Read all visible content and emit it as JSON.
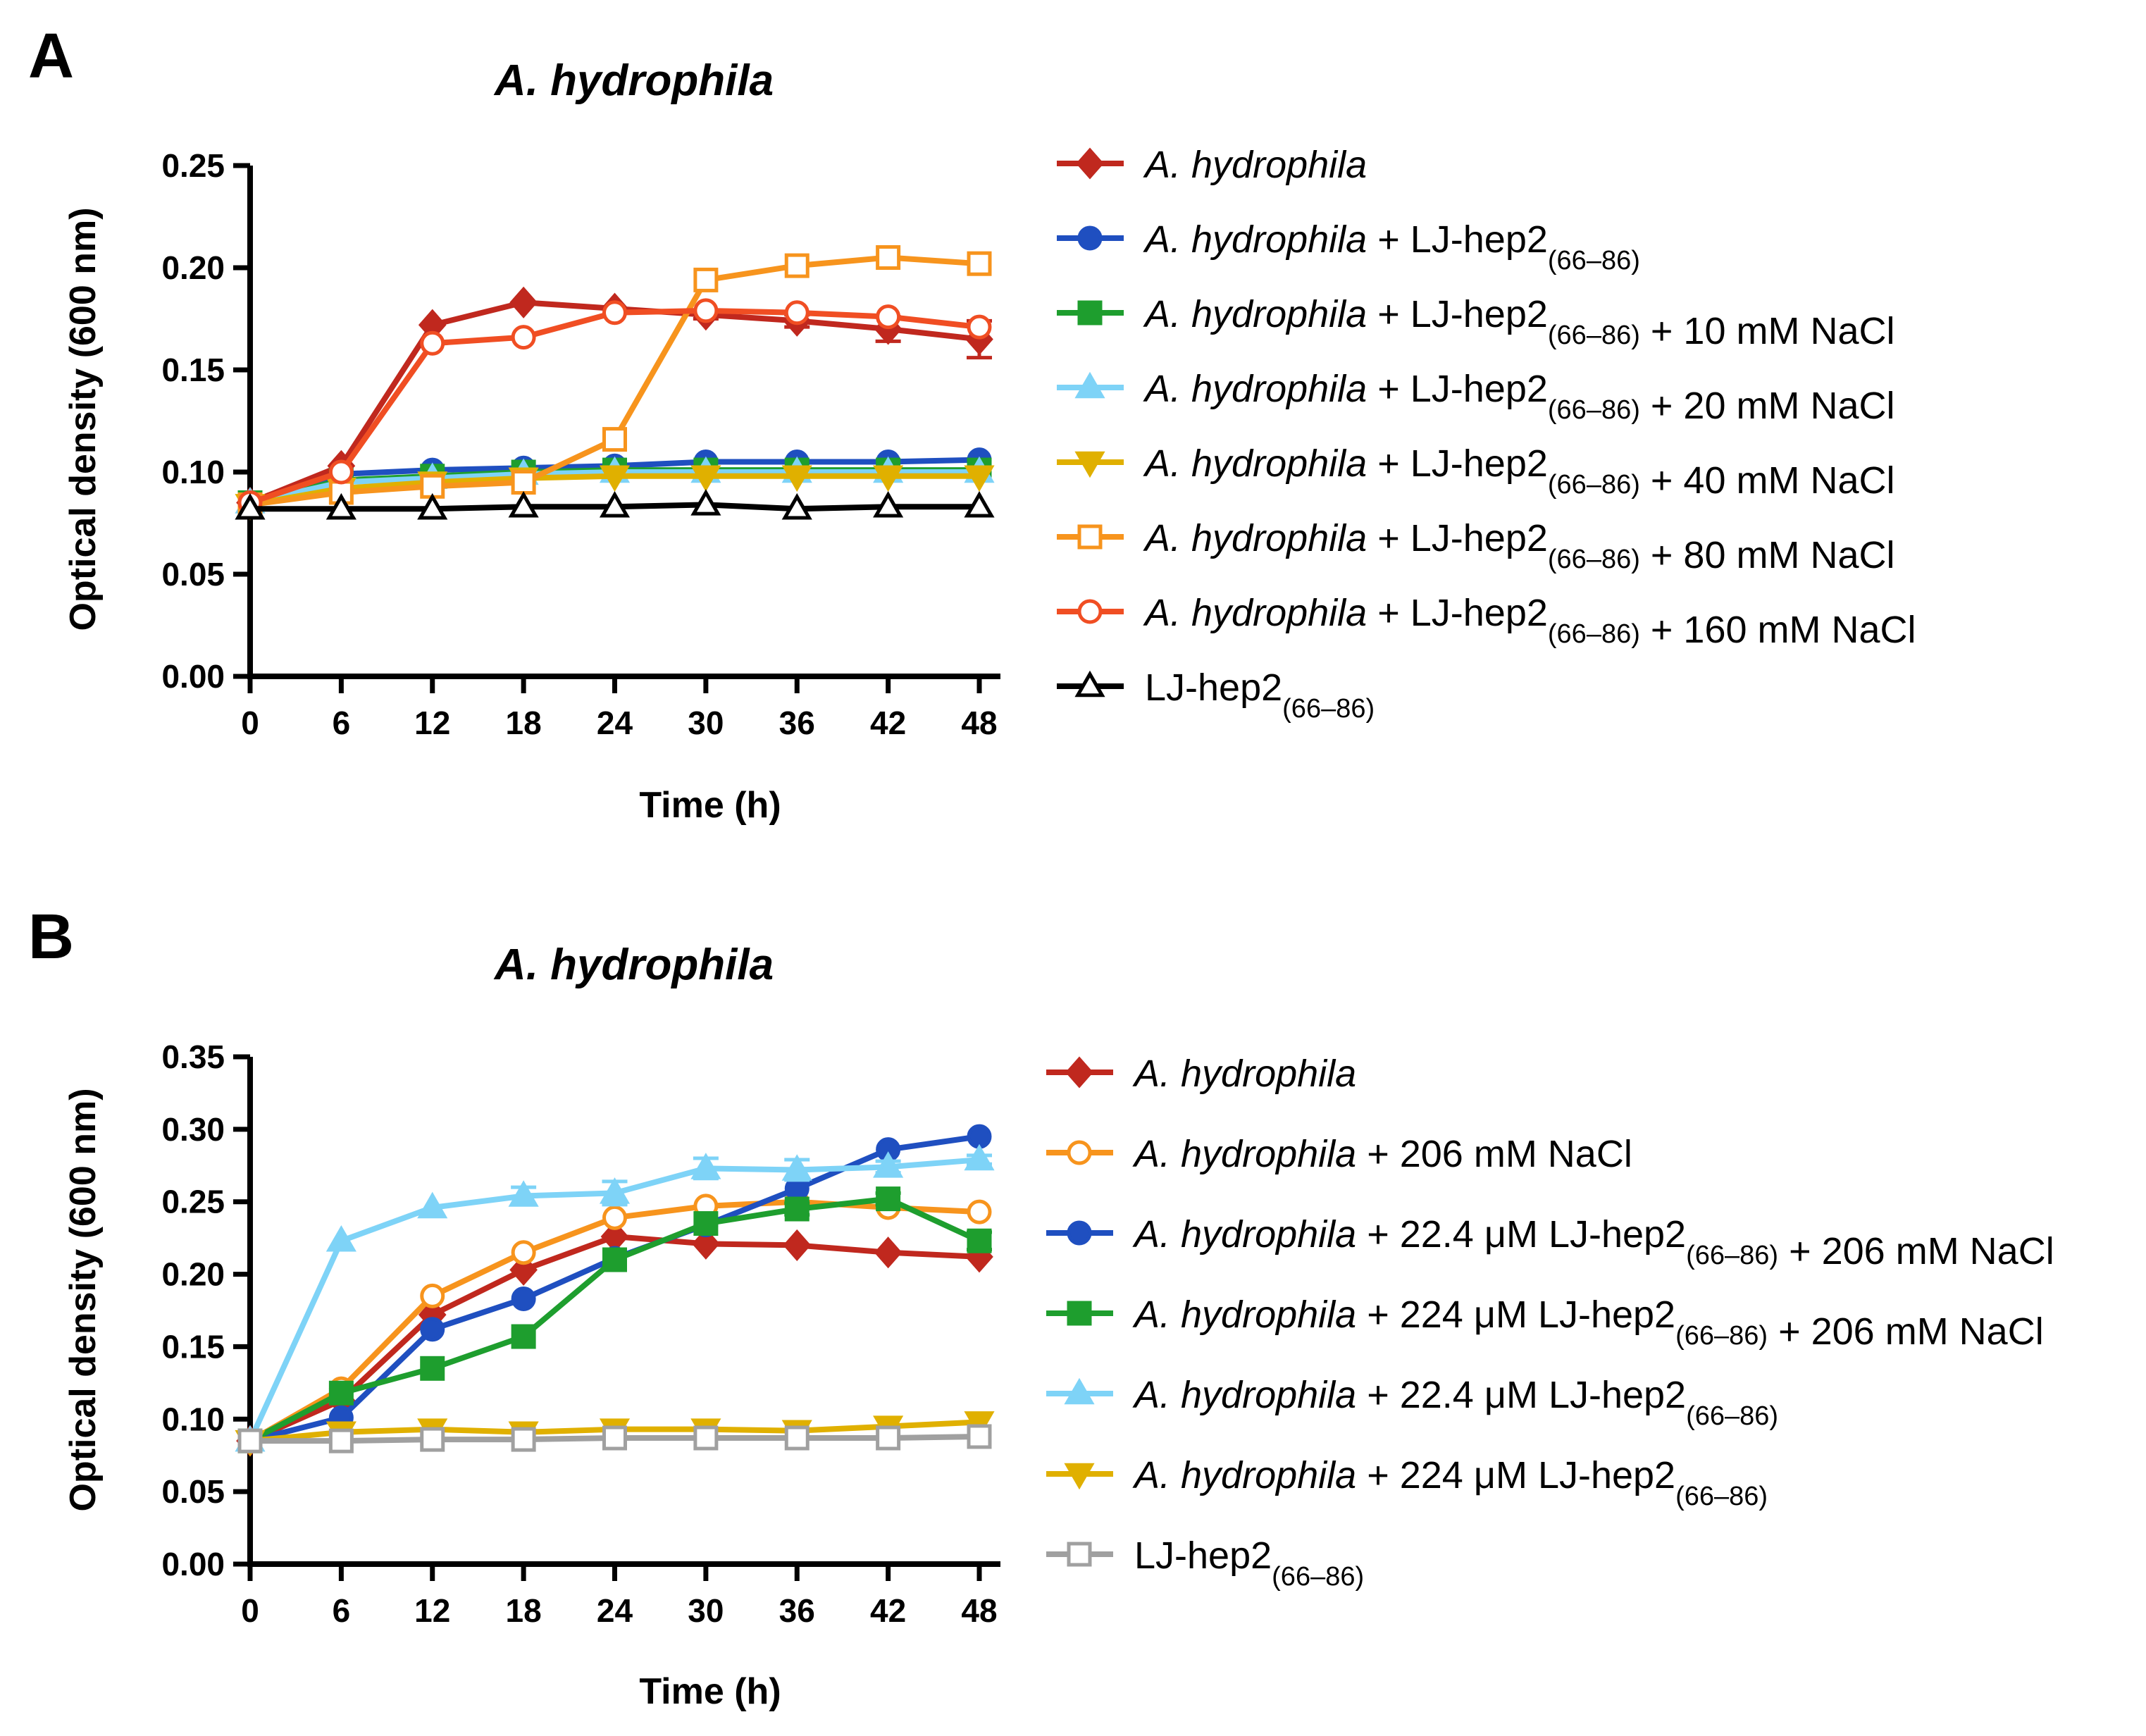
{
  "chart_data": [
    {
      "panel": "A",
      "type": "line",
      "title": "A. hydrophila",
      "xlabel": "Time (h)",
      "ylabel": "Optical density (600 nm)",
      "x": [
        0,
        6,
        12,
        18,
        24,
        30,
        36,
        42,
        48
      ],
      "x_ticks": [
        "0",
        "6",
        "12",
        "18",
        "24",
        "30",
        "36",
        "42",
        "48"
      ],
      "xlim": [
        0,
        48
      ],
      "ylim": [
        0,
        0.25
      ],
      "y_ticks": [
        "0.00",
        "0.05",
        "0.10",
        "0.15",
        "0.20",
        "0.25"
      ],
      "legend_position": "right",
      "series": [
        {
          "name": "A. hydrophila",
          "legend": [
            {
              "t": "A. hydrophila",
              "s": "it"
            }
          ],
          "color": "#C0281E",
          "marker": "diamond",
          "filled": true,
          "values": [
            0.085,
            0.103,
            0.172,
            0.183,
            0.18,
            0.177,
            0.174,
            0.17,
            0.165
          ],
          "err": [
            0,
            0,
            0,
            0,
            0,
            0.002,
            0.003,
            0.006,
            0.009
          ]
        },
        {
          "name": "A. hydrophila + LJ-hep2(66–86)",
          "legend": [
            {
              "t": "A. hydrophila",
              "s": "it"
            },
            {
              "t": " + LJ-hep2",
              "s": ""
            },
            {
              "t": "(66–86)",
              "s": "sub"
            }
          ],
          "color": "#1F4FC0",
          "marker": "circle",
          "filled": true,
          "values": [
            0.085,
            0.099,
            0.101,
            0.102,
            0.103,
            0.105,
            0.105,
            0.105,
            0.106
          ],
          "err": [
            0,
            0,
            0,
            0,
            0,
            0,
            0,
            0,
            0
          ]
        },
        {
          "name": "A. hydrophila + LJ-hep2(66–86) + 10 mM NaCl",
          "legend": [
            {
              "t": "A. hydrophila",
              "s": "it"
            },
            {
              "t": " + LJ-hep2",
              "s": ""
            },
            {
              "t": "(66–86)",
              "s": "sub"
            },
            {
              "t": " + 10 mM NaCl",
              "s": ""
            }
          ],
          "color": "#1E9E2E",
          "marker": "square",
          "filled": true,
          "values": [
            0.085,
            0.096,
            0.098,
            0.1,
            0.101,
            0.101,
            0.101,
            0.101,
            0.101
          ],
          "err": [
            0,
            0,
            0,
            0,
            0,
            0,
            0,
            0,
            0
          ]
        },
        {
          "name": "A. hydrophila + LJ-hep2(66–86) + 20 mM NaCl",
          "legend": [
            {
              "t": "A. hydrophila",
              "s": "it"
            },
            {
              "t": " + LJ-hep2",
              "s": ""
            },
            {
              "t": "(66–86)",
              "s": "sub"
            },
            {
              "t": " + 20 mM NaCl",
              "s": ""
            }
          ],
          "color": "#7ED3F7",
          "marker": "triangle-up",
          "filled": true,
          "values": [
            0.085,
            0.095,
            0.097,
            0.099,
            0.1,
            0.1,
            0.1,
            0.1,
            0.1
          ],
          "err": [
            0,
            0,
            0,
            0,
            0,
            0,
            0,
            0,
            0
          ]
        },
        {
          "name": "A. hydrophila + LJ-hep2(66–86) + 40 mM NaCl",
          "legend": [
            {
              "t": "A. hydrophila",
              "s": "it"
            },
            {
              "t": " + LJ-hep2",
              "s": ""
            },
            {
              "t": "(66–86)",
              "s": "sub"
            },
            {
              "t": " + 40 mM NaCl",
              "s": ""
            }
          ],
          "color": "#E0B000",
          "marker": "triangle-down",
          "filled": true,
          "values": [
            0.084,
            0.092,
            0.095,
            0.097,
            0.098,
            0.098,
            0.098,
            0.098,
            0.098
          ],
          "err": [
            0,
            0,
            0,
            0,
            0,
            0,
            0,
            0,
            0
          ]
        },
        {
          "name": "A. hydrophila + LJ-hep2(66–86) + 80 mM NaCl",
          "legend": [
            {
              "t": "A. hydrophila",
              "s": "it"
            },
            {
              "t": " + LJ-hep2",
              "s": ""
            },
            {
              "t": "(66–86)",
              "s": "sub"
            },
            {
              "t": " + 80 mM NaCl",
              "s": ""
            }
          ],
          "color": "#F7941D",
          "marker": "square",
          "filled": false,
          "values": [
            0.084,
            0.09,
            0.093,
            0.095,
            0.116,
            0.194,
            0.201,
            0.205,
            0.202
          ],
          "err": [
            0,
            0,
            0,
            0,
            0,
            0,
            0,
            0,
            0
          ]
        },
        {
          "name": "A. hydrophila + LJ-hep2(66–86) + 160 mM NaCl",
          "legend": [
            {
              "t": "A. hydrophila",
              "s": "it"
            },
            {
              "t": " + LJ-hep2",
              "s": ""
            },
            {
              "t": "(66–86)",
              "s": "sub"
            },
            {
              "t": " + 160 mM NaCl",
              "s": ""
            }
          ],
          "color": "#F04E23",
          "marker": "circle",
          "filled": false,
          "values": [
            0.085,
            0.1,
            0.163,
            0.166,
            0.178,
            0.179,
            0.178,
            0.176,
            0.171
          ],
          "err": [
            0,
            0,
            0,
            0,
            0,
            0,
            0,
            0,
            0
          ]
        },
        {
          "name": "LJ-hep2(66–86)",
          "legend": [
            {
              "t": "LJ-hep2",
              "s": ""
            },
            {
              "t": "(66–86)",
              "s": "sub"
            }
          ],
          "color": "#000000",
          "marker": "triangle-up",
          "filled": false,
          "values": [
            0.082,
            0.082,
            0.082,
            0.083,
            0.083,
            0.084,
            0.082,
            0.083,
            0.083
          ],
          "err": [
            0,
            0,
            0,
            0,
            0,
            0,
            0,
            0,
            0
          ]
        }
      ]
    },
    {
      "panel": "B",
      "type": "line",
      "title": "A. hydrophila",
      "xlabel": "Time (h)",
      "ylabel": "Optical density (600 nm)",
      "x": [
        0,
        6,
        12,
        18,
        24,
        30,
        36,
        42,
        48
      ],
      "x_ticks": [
        "0",
        "6",
        "12",
        "18",
        "24",
        "30",
        "36",
        "42",
        "48"
      ],
      "xlim": [
        0,
        48
      ],
      "ylim": [
        0,
        0.35
      ],
      "y_ticks": [
        "0.00",
        "0.05",
        "0.10",
        "0.15",
        "0.20",
        "0.25",
        "0.30",
        "0.35"
      ],
      "legend_position": "right",
      "series": [
        {
          "name": "A. hydrophila",
          "legend": [
            {
              "t": "A. hydrophila",
              "s": "it"
            }
          ],
          "color": "#C0281E",
          "marker": "diamond",
          "filled": true,
          "values": [
            0.085,
            0.113,
            0.172,
            0.203,
            0.226,
            0.221,
            0.22,
            0.215,
            0.212
          ],
          "err": [
            0,
            0,
            0,
            0,
            0,
            0,
            0,
            0,
            0
          ]
        },
        {
          "name": "A. hydrophila + 206 mM NaCl",
          "legend": [
            {
              "t": "A. hydrophila",
              "s": "it"
            },
            {
              "t": " + 206 mM NaCl",
              "s": ""
            }
          ],
          "color": "#F7941D",
          "marker": "circle",
          "filled": false,
          "values": [
            0.085,
            0.121,
            0.185,
            0.215,
            0.239,
            0.247,
            0.25,
            0.246,
            0.243
          ],
          "err": [
            0,
            0,
            0,
            0,
            0,
            0,
            0,
            0,
            0
          ]
        },
        {
          "name": "A. hydrophila + 22.4 μM LJ-hep2(66–86) + 206 mM NaCl",
          "legend": [
            {
              "t": "A. hydrophila",
              "s": "it"
            },
            {
              "t": " + 22.4 μM LJ-hep2",
              "s": ""
            },
            {
              "t": "(66–86)",
              "s": "sub"
            },
            {
              "t": " + 206 mM NaCl",
              "s": ""
            }
          ],
          "color": "#1F4FC0",
          "marker": "circle",
          "filled": true,
          "values": [
            0.085,
            0.101,
            0.162,
            0.183,
            0.211,
            0.234,
            0.259,
            0.286,
            0.295
          ],
          "err": [
            0,
            0,
            0,
            0,
            0,
            0,
            0,
            0,
            0
          ]
        },
        {
          "name": "A. hydrophila + 224 μM LJ-hep2(66–86) + 206 mM NaCl",
          "legend": [
            {
              "t": "A. hydrophila",
              "s": "it"
            },
            {
              "t": " + 224 μM LJ-hep2",
              "s": ""
            },
            {
              "t": "(66–86)",
              "s": "sub"
            },
            {
              "t": " + 206 mM NaCl",
              "s": ""
            }
          ],
          "color": "#1E9E2E",
          "marker": "square",
          "filled": true,
          "values": [
            0.085,
            0.118,
            0.135,
            0.157,
            0.21,
            0.235,
            0.245,
            0.252,
            0.223
          ],
          "err": [
            0,
            0,
            0,
            0,
            0,
            0,
            0.004,
            0.004,
            0.006
          ]
        },
        {
          "name": "A. hydrophila + 22.4 μM LJ-hep2(66–86)",
          "legend": [
            {
              "t": "A. hydrophila",
              "s": "it"
            },
            {
              "t": " + 22.4 μM LJ-hep2",
              "s": ""
            },
            {
              "t": "(66–86)",
              "s": "sub"
            }
          ],
          "color": "#7ED3F7",
          "marker": "triangle-up",
          "filled": true,
          "values": [
            0.085,
            0.223,
            0.246,
            0.254,
            0.256,
            0.273,
            0.272,
            0.274,
            0.279
          ],
          "err": [
            0,
            0,
            0,
            0.006,
            0.008,
            0.007,
            0.007,
            0.004,
            0.003
          ]
        },
        {
          "name": "A. hydrophila + 224 μM LJ-hep2(66–86)",
          "legend": [
            {
              "t": "A. hydrophila",
              "s": "it"
            },
            {
              "t": " + 224 μM LJ-hep2",
              "s": ""
            },
            {
              "t": "(66–86)",
              "s": "sub"
            }
          ],
          "color": "#E0B000",
          "marker": "triangle-down",
          "filled": true,
          "values": [
            0.085,
            0.091,
            0.093,
            0.091,
            0.093,
            0.093,
            0.092,
            0.095,
            0.098
          ],
          "err": [
            0,
            0,
            0,
            0,
            0,
            0,
            0,
            0,
            0
          ]
        },
        {
          "name": "LJ-hep2(66–86)",
          "legend": [
            {
              "t": "LJ-hep2",
              "s": ""
            },
            {
              "t": "(66–86)",
              "s": "sub"
            }
          ],
          "color": "#A0A0A0",
          "marker": "square",
          "filled": false,
          "values": [
            0.085,
            0.085,
            0.086,
            0.086,
            0.087,
            0.087,
            0.087,
            0.087,
            0.088
          ],
          "err": [
            0,
            0,
            0,
            0,
            0,
            0,
            0,
            0,
            0
          ]
        }
      ]
    }
  ]
}
